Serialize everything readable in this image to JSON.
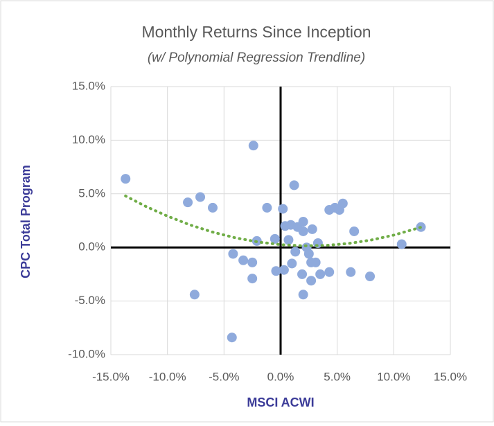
{
  "chart_data": {
    "type": "scatter",
    "title": "Monthly Returns Since Inception",
    "subtitle": "(w/ Polynomial Regression Trendline)",
    "x_label": "MSCI ACWI",
    "y_label": "CPC Total Program",
    "xlim": [
      -15,
      15
    ],
    "ylim": [
      -10,
      15
    ],
    "xticks": [
      {
        "value": -15,
        "label": "-15.0%"
      },
      {
        "value": -10,
        "label": "-10.0%"
      },
      {
        "value": -5,
        "label": "-5.0%"
      },
      {
        "value": 0,
        "label": "0.0%"
      },
      {
        "value": 5,
        "label": "5.0%"
      },
      {
        "value": 10,
        "label": "10.0%"
      },
      {
        "value": 15,
        "label": "15.0%"
      }
    ],
    "yticks": [
      {
        "value": -10,
        "label": "-10.0%"
      },
      {
        "value": -5,
        "label": "-5.0%"
      },
      {
        "value": 0,
        "label": "0.0%"
      },
      {
        "value": 5,
        "label": "5.0%"
      },
      {
        "value": 10,
        "label": "10.0%"
      },
      {
        "value": 15,
        "label": "15.0%"
      }
    ],
    "grid": true,
    "color": "#8faadc",
    "x": [
      -13.7,
      -8.2,
      -7.1,
      -6.0,
      -7.6,
      -4.3,
      -4.2,
      -3.3,
      -2.5,
      -2.5,
      -2.4,
      -2.1,
      -1.2,
      -0.5,
      -0.4,
      0.2,
      0.3,
      0.4,
      0.7,
      0.9,
      1.0,
      1.2,
      1.3,
      1.5,
      1.9,
      2.0,
      2.0,
      2.0,
      2.3,
      2.5,
      2.7,
      2.7,
      2.8,
      3.1,
      3.3,
      3.5,
      4.3,
      4.3,
      4.8,
      5.2,
      5.5,
      6.2,
      6.5,
      7.9,
      10.7,
      12.4
    ],
    "values": [
      6.4,
      4.2,
      4.7,
      3.7,
      -4.4,
      -8.4,
      -0.6,
      -1.2,
      -1.4,
      -2.9,
      9.5,
      0.6,
      3.7,
      0.8,
      -2.2,
      3.6,
      -2.1,
      2.0,
      0.7,
      2.1,
      -1.5,
      5.8,
      -0.4,
      1.9,
      -2.5,
      1.5,
      2.4,
      -4.4,
      0.0,
      -0.6,
      -1.4,
      -3.1,
      1.7,
      -1.4,
      0.4,
      -2.5,
      -2.3,
      3.5,
      3.7,
      3.5,
      4.1,
      -2.3,
      1.5,
      -2.7,
      0.3,
      1.9
    ],
    "trendline": {
      "color": "#70ad47",
      "x": [
        -13.7,
        -12,
        -10,
        -8,
        -6,
        -4,
        -2,
        0,
        2,
        4,
        6,
        8,
        10,
        12.4
      ],
      "values": [
        4.8,
        3.87,
        2.92,
        2.1,
        1.43,
        0.9,
        0.51,
        0.26,
        0.15,
        0.19,
        0.37,
        0.69,
        1.15,
        1.88
      ]
    }
  }
}
